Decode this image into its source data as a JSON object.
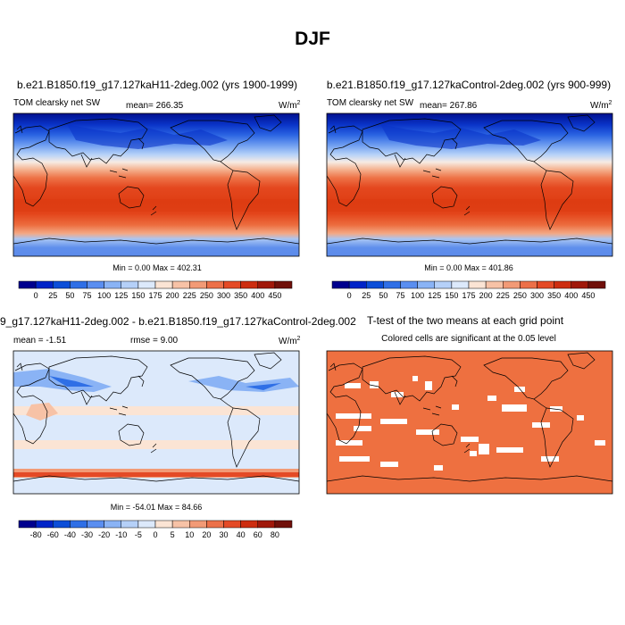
{
  "page": {
    "title": "DJF"
  },
  "chart_data": [
    {
      "type": "heatmap",
      "title": "b.e21.B1850.f19_g17.127kaH11-2deg.002 (yrs 1900-1999)",
      "variable": "TOM clearsky net SW",
      "stat": "mean= 266.35",
      "units_base": "W/m",
      "units_exp": "2",
      "minmax": "Min =   0.00 Max = 402.31",
      "colorbar": {
        "labels": [
          "0",
          "25",
          "50",
          "75",
          "100",
          "125",
          "150",
          "175",
          "200",
          "225",
          "250",
          "300",
          "350",
          "400",
          "450"
        ],
        "colors": [
          "#00008e",
          "#0024c8",
          "#0c4ed8",
          "#2f6fe6",
          "#5a8ef0",
          "#8ab3f5",
          "#b5d0f8",
          "#dce9fb",
          "#fbe4d4",
          "#f7c2a6",
          "#f29a76",
          "#ec7049",
          "#e44a26",
          "#cd2d10",
          "#a0180a",
          "#70100a"
        ]
      }
    },
    {
      "type": "heatmap",
      "title": "b.e21.B1850.f19_g17.127kaControl-2deg.002 (yrs 900-999)",
      "variable": "TOM clearsky net SW",
      "stat": "mean= 267.86",
      "units_base": "W/m",
      "units_exp": "2",
      "minmax": "Min =   0.00 Max = 401.86",
      "colorbar": {
        "labels": [
          "0",
          "25",
          "50",
          "75",
          "100",
          "125",
          "150",
          "175",
          "200",
          "225",
          "250",
          "300",
          "350",
          "400",
          "450"
        ],
        "colors": [
          "#00008e",
          "#0024c8",
          "#0c4ed8",
          "#2f6fe6",
          "#5a8ef0",
          "#8ab3f5",
          "#b5d0f8",
          "#dce9fb",
          "#fbe4d4",
          "#f7c2a6",
          "#f29a76",
          "#ec7049",
          "#e44a26",
          "#cd2d10",
          "#a0180a",
          "#70100a"
        ]
      }
    },
    {
      "type": "heatmap",
      "title": "9_g17.127kaH11-2deg.002 - b.e21.B1850.f19_g17.127kaControl-2deg.002",
      "stat": "mean =  -1.51",
      "stat2": "rmse =   9.00",
      "units_base": "W/m",
      "units_exp": "2",
      "minmax": "Min = -54.01 Max =  84.66",
      "colorbar": {
        "labels": [
          "-80",
          "-60",
          "-40",
          "-30",
          "-20",
          "-10",
          "-5",
          "0",
          "5",
          "10",
          "20",
          "30",
          "40",
          "60",
          "80"
        ],
        "colors": [
          "#00008e",
          "#0024c8",
          "#0c4ed8",
          "#2f6fe6",
          "#5a8ef0",
          "#8ab3f5",
          "#b5d0f8",
          "#dce9fb",
          "#fbe4d4",
          "#f7c2a6",
          "#f29a76",
          "#ec7049",
          "#e44a26",
          "#cd2d10",
          "#a0180a",
          "#70100a"
        ]
      }
    },
    {
      "type": "heatmap",
      "title": "T-test of the two means at each grid point",
      "subtitle": "Colored cells are significant at the 0.05 level",
      "fill_color": "#ee7040"
    }
  ]
}
